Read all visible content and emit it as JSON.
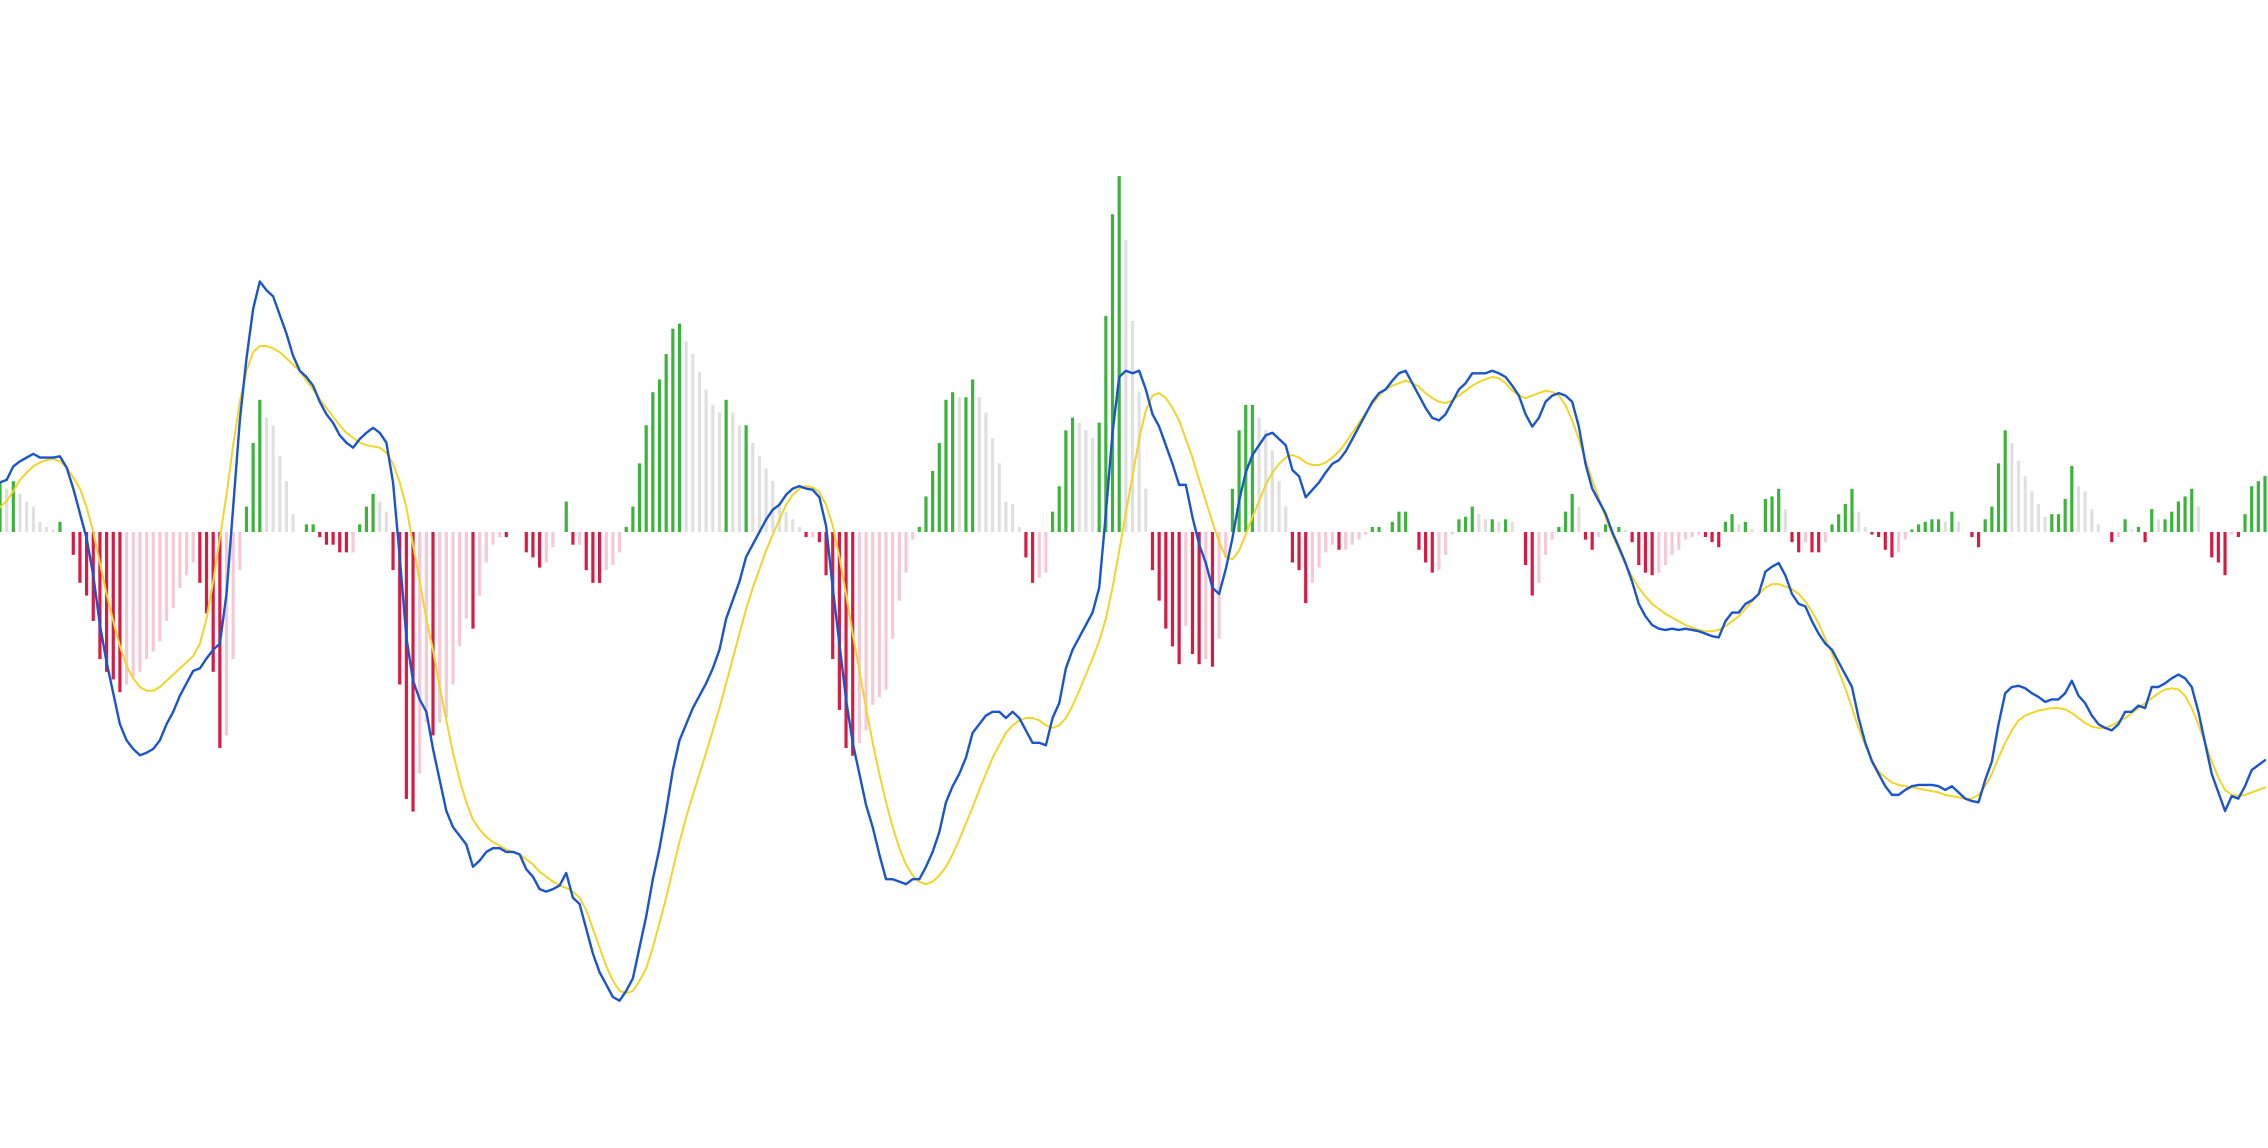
{
  "chart_data": {
    "type": "bar",
    "title": "",
    "xlabel": "",
    "ylabel": "",
    "ylim": [
      -3.2,
      2.1
    ],
    "grid": false,
    "legend": "none",
    "colors": {
      "macd_line": "#1a55cc",
      "signal_line": "#f0d52a",
      "hist_pos_strong": "#3cb43c",
      "hist_pos_weak": "#e0e0e0",
      "hist_neg_strong": "#d81b45",
      "hist_neg_weak": "#f6c9d6"
    },
    "macd": [
      0.4,
      0.42,
      0.53,
      0.57,
      0.6,
      0.63,
      0.6,
      0.6,
      0.6,
      0.61,
      0.52,
      0.35,
      0.15,
      -0.05,
      -0.35,
      -0.75,
      -1.05,
      -1.3,
      -1.55,
      -1.68,
      -1.75,
      -1.8,
      -1.78,
      -1.75,
      -1.68,
      -1.55,
      -1.45,
      -1.32,
      -1.22,
      -1.12,
      -1.1,
      -1.02,
      -0.95,
      -0.9,
      -0.5,
      0.2,
      0.9,
      1.4,
      1.8,
      2.02,
      1.95,
      1.9,
      1.75,
      1.6,
      1.42,
      1.3,
      1.25,
      1.18,
      1.05,
      0.95,
      0.88,
      0.78,
      0.72,
      0.68,
      0.75,
      0.8,
      0.84,
      0.8,
      0.72,
      0.4,
      -0.2,
      -0.85,
      -1.2,
      -1.35,
      -1.45,
      -1.75,
      -2.0,
      -2.25,
      -2.38,
      -2.45,
      -2.52,
      -2.7,
      -2.65,
      -2.58,
      -2.55,
      -2.55,
      -2.58,
      -2.58,
      -2.6,
      -2.72,
      -2.78,
      -2.88,
      -2.9,
      -2.88,
      -2.85,
      -2.75,
      -2.95,
      -3.0,
      -3.2,
      -3.4,
      -3.55,
      -3.65,
      -3.75,
      -3.78,
      -3.7,
      -3.6,
      -3.35,
      -3.1,
      -2.8,
      -2.55,
      -2.25,
      -1.92,
      -1.68,
      -1.55,
      -1.42,
      -1.32,
      -1.22,
      -1.1,
      -0.95,
      -0.7,
      -0.55,
      -0.4,
      -0.2,
      -0.1,
      0.0,
      0.1,
      0.18,
      0.22,
      0.3,
      0.35,
      0.37,
      0.35,
      0.34,
      0.28,
      0.05,
      -0.45,
      -0.9,
      -1.35,
      -1.7,
      -1.95,
      -2.2,
      -2.38,
      -2.6,
      -2.8,
      -2.8,
      -2.82,
      -2.84,
      -2.8,
      -2.8,
      -2.7,
      -2.58,
      -2.42,
      -2.18,
      -2.05,
      -1.95,
      -1.82,
      -1.62,
      -1.55,
      -1.48,
      -1.45,
      -1.45,
      -1.5,
      -1.45,
      -1.5,
      -1.6,
      -1.7,
      -1.7,
      -1.72,
      -1.5,
      -1.38,
      -1.1,
      -0.95,
      -0.85,
      -0.75,
      -0.65,
      -0.45,
      0.15,
      0.8,
      1.25,
      1.3,
      1.28,
      1.3,
      1.15,
      0.95,
      0.85,
      0.7,
      0.55,
      0.38,
      0.38,
      0.12,
      -0.1,
      -0.25,
      -0.45,
      -0.5,
      -0.3,
      -0.05,
      0.25,
      0.48,
      0.62,
      0.7,
      0.78,
      0.8,
      0.75,
      0.7,
      0.5,
      0.45,
      0.28,
      0.34,
      0.4,
      0.48,
      0.55,
      0.58,
      0.65,
      0.75,
      0.85,
      0.95,
      1.05,
      1.12,
      1.15,
      1.22,
      1.28,
      1.3,
      1.2,
      1.1,
      1.0,
      0.92,
      0.9,
      0.95,
      1.05,
      1.15,
      1.2,
      1.28,
      1.28,
      1.28,
      1.3,
      1.28,
      1.25,
      1.18,
      1.1,
      0.95,
      0.85,
      0.92,
      1.05,
      1.1,
      1.12,
      1.1,
      1.05,
      0.85,
      0.55,
      0.35,
      0.25,
      0.15,
      0.0,
      -0.12,
      -0.25,
      -0.4,
      -0.58,
      -0.68,
      -0.75,
      -0.78,
      -0.79,
      -0.78,
      -0.79,
      -0.78,
      -0.79,
      -0.8,
      -0.82,
      -0.84,
      -0.85,
      -0.72,
      -0.65,
      -0.65,
      -0.58,
      -0.55,
      -0.5,
      -0.32,
      -0.28,
      -0.25,
      -0.35,
      -0.5,
      -0.58,
      -0.6,
      -0.72,
      -0.82,
      -0.9,
      -0.95,
      -1.05,
      -1.15,
      -1.25,
      -1.5,
      -1.7,
      -1.85,
      -1.95,
      -2.05,
      -2.12,
      -2.12,
      -2.08,
      -2.05,
      -2.04,
      -2.04,
      -2.04,
      -2.05,
      -2.08,
      -2.05,
      -2.1,
      -2.15,
      -2.17,
      -2.18,
      -2.0,
      -1.85,
      -1.55,
      -1.3,
      -1.25,
      -1.24,
      -1.26,
      -1.3,
      -1.33,
      -1.37,
      -1.35,
      -1.35,
      -1.3,
      -1.2,
      -1.32,
      -1.38,
      -1.48,
      -1.55,
      -1.58,
      -1.6,
      -1.55,
      -1.45,
      -1.45,
      -1.4,
      -1.42,
      -1.25,
      -1.25,
      -1.22,
      -1.18,
      -1.15,
      -1.18,
      -1.25,
      -1.45,
      -1.7,
      -1.95,
      -2.1,
      -2.25,
      -2.13,
      -2.15,
      -2.05,
      -1.92,
      -1.88,
      -1.84
    ],
    "signal": [
      0.2,
      0.25,
      0.33,
      0.42,
      0.48,
      0.53,
      0.56,
      0.58,
      0.59,
      0.57,
      0.52,
      0.44,
      0.35,
      0.2,
      0.0,
      -0.25,
      -0.5,
      -0.72,
      -0.92,
      -1.08,
      -1.18,
      -1.25,
      -1.28,
      -1.28,
      -1.25,
      -1.2,
      -1.15,
      -1.1,
      -1.05,
      -1.0,
      -0.9,
      -0.7,
      -0.4,
      -0.05,
      0.3,
      0.7,
      1.05,
      1.3,
      1.45,
      1.5,
      1.5,
      1.48,
      1.45,
      1.4,
      1.35,
      1.3,
      1.22,
      1.15,
      1.07,
      1.0,
      0.93,
      0.86,
      0.8,
      0.76,
      0.72,
      0.7,
      0.69,
      0.68,
      0.64,
      0.55,
      0.4,
      0.2,
      -0.1,
      -0.4,
      -0.7,
      -0.95,
      -1.25,
      -1.52,
      -1.78,
      -2.0,
      -2.18,
      -2.32,
      -2.4,
      -2.46,
      -2.5,
      -2.53,
      -2.56,
      -2.58,
      -2.6,
      -2.64,
      -2.68,
      -2.74,
      -2.78,
      -2.82,
      -2.85,
      -2.87,
      -2.9,
      -2.95,
      -3.05,
      -3.2,
      -3.35,
      -3.5,
      -3.62,
      -3.7,
      -3.72,
      -3.7,
      -3.62,
      -3.52,
      -3.35,
      -3.15,
      -2.95,
      -2.72,
      -2.5,
      -2.3,
      -2.12,
      -1.95,
      -1.78,
      -1.6,
      -1.42,
      -1.22,
      -1.02,
      -0.82,
      -0.62,
      -0.45,
      -0.3,
      -0.15,
      -0.02,
      0.1,
      0.22,
      0.3,
      0.35,
      0.37,
      0.36,
      0.32,
      0.22,
      0.05,
      -0.2,
      -0.5,
      -0.82,
      -1.12,
      -1.42,
      -1.7,
      -1.95,
      -2.18,
      -2.38,
      -2.55,
      -2.68,
      -2.77,
      -2.82,
      -2.84,
      -2.82,
      -2.77,
      -2.7,
      -2.6,
      -2.48,
      -2.35,
      -2.22,
      -2.08,
      -1.95,
      -1.82,
      -1.72,
      -1.62,
      -1.56,
      -1.52,
      -1.5,
      -1.5,
      -1.52,
      -1.56,
      -1.58,
      -1.56,
      -1.5,
      -1.4,
      -1.28,
      -1.15,
      -1.02,
      -0.88,
      -0.7,
      -0.45,
      -0.15,
      0.15,
      0.45,
      0.75,
      0.98,
      1.1,
      1.12,
      1.08,
      1.0,
      0.9,
      0.75,
      0.6,
      0.42,
      0.25,
      0.08,
      -0.08,
      -0.2,
      -0.22,
      -0.15,
      -0.02,
      0.12,
      0.25,
      0.38,
      0.48,
      0.55,
      0.6,
      0.62,
      0.6,
      0.56,
      0.54,
      0.54,
      0.56,
      0.6,
      0.65,
      0.72,
      0.8,
      0.88,
      0.96,
      1.03,
      1.1,
      1.15,
      1.18,
      1.2,
      1.22,
      1.2,
      1.17,
      1.12,
      1.08,
      1.05,
      1.04,
      1.06,
      1.1,
      1.14,
      1.18,
      1.21,
      1.23,
      1.25,
      1.24,
      1.2,
      1.14,
      1.1,
      1.08,
      1.1,
      1.12,
      1.14,
      1.13,
      1.1,
      1.02,
      0.9,
      0.75,
      0.58,
      0.42,
      0.27,
      0.12,
      -0.02,
      -0.14,
      -0.26,
      -0.36,
      -0.45,
      -0.52,
      -0.58,
      -0.62,
      -0.66,
      -0.69,
      -0.72,
      -0.75,
      -0.77,
      -0.79,
      -0.8,
      -0.8,
      -0.79,
      -0.76,
      -0.72,
      -0.68,
      -0.62,
      -0.56,
      -0.5,
      -0.45,
      -0.42,
      -0.42,
      -0.44,
      -0.46,
      -0.5,
      -0.56,
      -0.64,
      -0.74,
      -0.86,
      -0.98,
      -1.12,
      -1.26,
      -1.42,
      -1.58,
      -1.72,
      -1.84,
      -1.93,
      -1.98,
      -2.02,
      -2.04,
      -2.05,
      -2.06,
      -2.07,
      -2.08,
      -2.09,
      -2.1,
      -2.12,
      -2.13,
      -2.14,
      -2.15,
      -2.15,
      -2.12,
      -2.05,
      -1.95,
      -1.82,
      -1.7,
      -1.6,
      -1.52,
      -1.48,
      -1.46,
      -1.44,
      -1.43,
      -1.42,
      -1.42,
      -1.43,
      -1.46,
      -1.5,
      -1.54,
      -1.57,
      -1.58,
      -1.58,
      -1.56,
      -1.53,
      -1.5,
      -1.46,
      -1.42,
      -1.38,
      -1.34,
      -1.3,
      -1.27,
      -1.26,
      -1.27,
      -1.32,
      -1.42,
      -1.55,
      -1.7,
      -1.85,
      -1.98,
      -2.08,
      -2.12,
      -2.13,
      -2.12,
      -2.1,
      -2.08,
      -2.06
    ]
  }
}
